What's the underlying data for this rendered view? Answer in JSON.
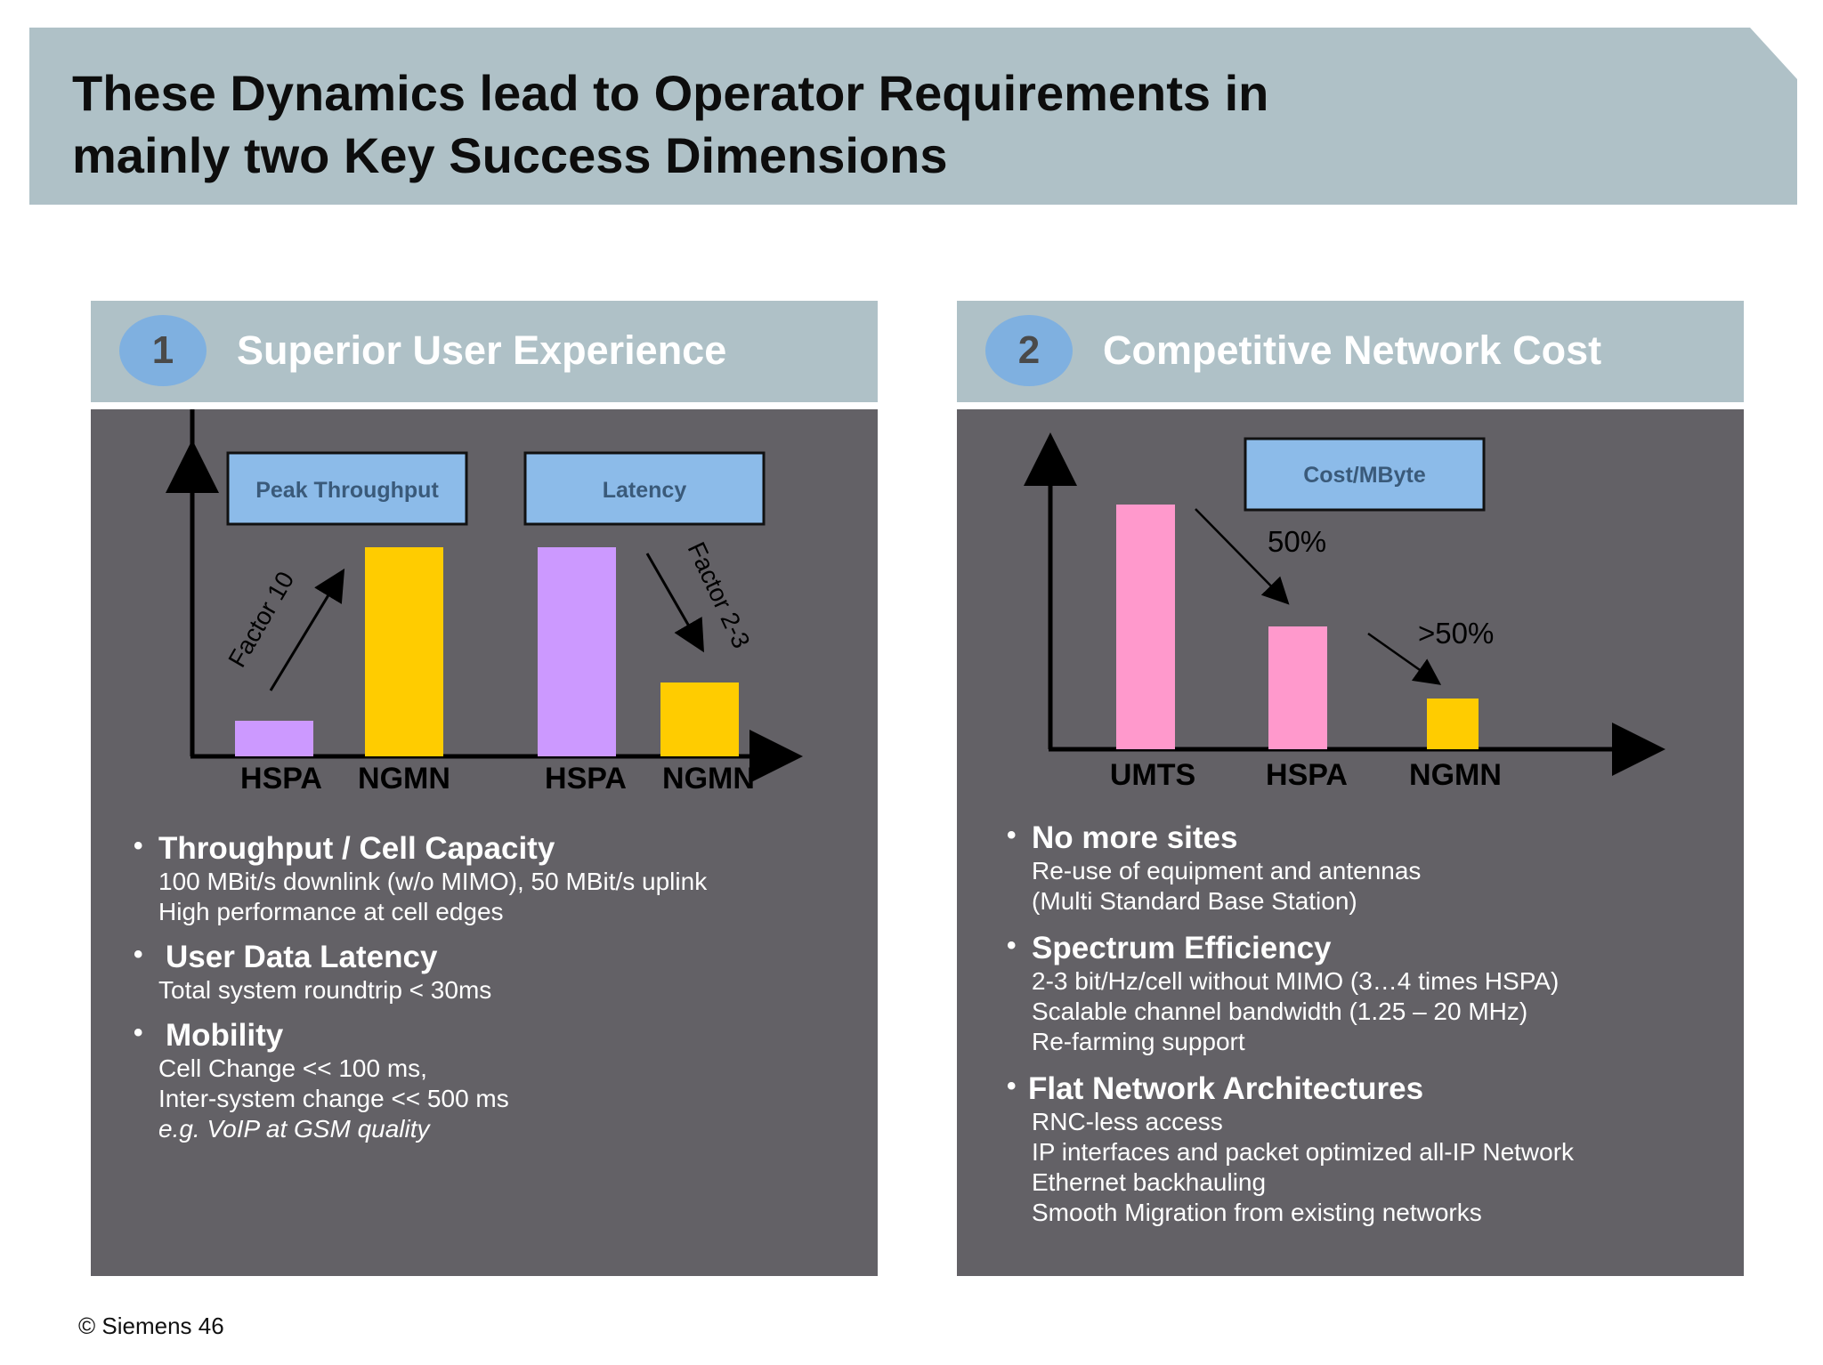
{
  "title": {
    "line1": "These Dynamics lead to Operator Requirements in",
    "line2": "mainly two Key Success Dimensions"
  },
  "left": {
    "number": "1",
    "heading": "Superior User Experience",
    "box1": "Peak Throughput",
    "box2": "Latency",
    "factor_up": "Factor 10",
    "factor_down": "Factor 2-3",
    "xlabels": [
      "HSPA",
      "NGMN",
      "HSPA",
      "NGMN"
    ],
    "bullets": [
      {
        "head": "Throughput / Cell Capacity",
        "lines": [
          "100 MBit/s downlink (w/o MIMO), 50 MBit/s uplink",
          "High performance at cell edges"
        ]
      },
      {
        "head": "User Data Latency",
        "lines": [
          "Total system roundtrip < 30ms"
        ]
      },
      {
        "head": "Mobility",
        "lines": [
          "Cell Change << 100 ms,",
          "Inter-system change << 500 ms"
        ],
        "italic": "e.g. VoIP at GSM quality"
      }
    ]
  },
  "right": {
    "number": "2",
    "heading": "Competitive Network Cost",
    "box": "Cost/MByte",
    "pct1": "50%",
    "pct2": ">50%",
    "xlabels": [
      "UMTS",
      "HSPA",
      "NGMN"
    ],
    "bullets": [
      {
        "head": "No more sites",
        "lines": [
          "Re-use of equipment and antennas",
          "(Multi Standard Base Station)"
        ]
      },
      {
        "head": "Spectrum Efficiency",
        "lines": [
          "2-3 bit/Hz/cell without MIMO (3…4 times HSPA)",
          "Scalable channel bandwidth (1.25 – 20 MHz)",
          "Re-farming support"
        ]
      },
      {
        "head": "Flat Network Architectures",
        "lines": [
          "RNC-less access",
          "IP interfaces and packet optimized all-IP Network",
          "Ethernet backhauling",
          "Smooth Migration from existing networks"
        ]
      }
    ]
  },
  "footer": "© Siemens 46",
  "colors": {
    "purple": "#cc99ff",
    "yellow": "#ffcc00",
    "pink": "#ff99cc",
    "box": "#8cbbe9",
    "panel": "#636166",
    "header": "#afc1c7"
  }
}
